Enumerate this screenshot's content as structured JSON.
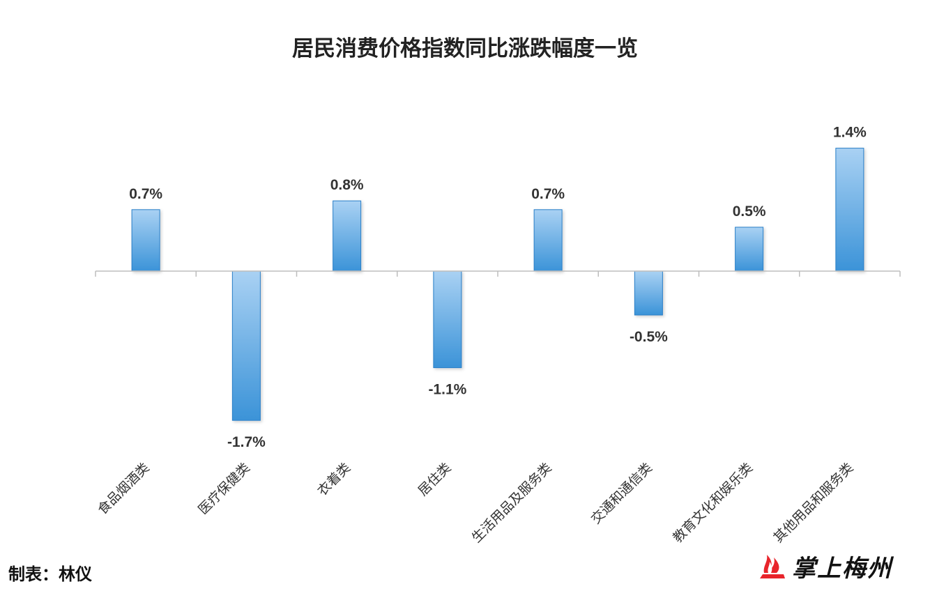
{
  "chart_data": {
    "type": "bar",
    "title": "居民消费价格指数同比涨跌幅度一览",
    "categories": [
      "食品烟酒类",
      "医疗保健类",
      "衣着类",
      "居住类",
      "生活用品及服务类",
      "交通和通信类",
      "教育文化和娱乐类",
      "其他用品和服务类"
    ],
    "values": [
      0.7,
      -1.7,
      0.8,
      -1.1,
      0.7,
      -0.5,
      0.5,
      1.4
    ],
    "value_labels": [
      "0.7%",
      "-1.7%",
      "0.8%",
      "-1.1%",
      "0.7%",
      "-0.5%",
      "0.5%",
      "1.4%"
    ],
    "unit": "%",
    "xlabel": "",
    "ylabel": "",
    "ylim": [
      -2.5,
      2.0
    ],
    "grid": false,
    "legend": "none",
    "bar_color_top": "#a9d1f3",
    "bar_color_bottom": "#3b93d8",
    "bar_edge_color": "#2a7fc8"
  },
  "credit": "制表：林仪",
  "logo": {
    "text": "掌上梅州",
    "color": "#e8242b"
  }
}
